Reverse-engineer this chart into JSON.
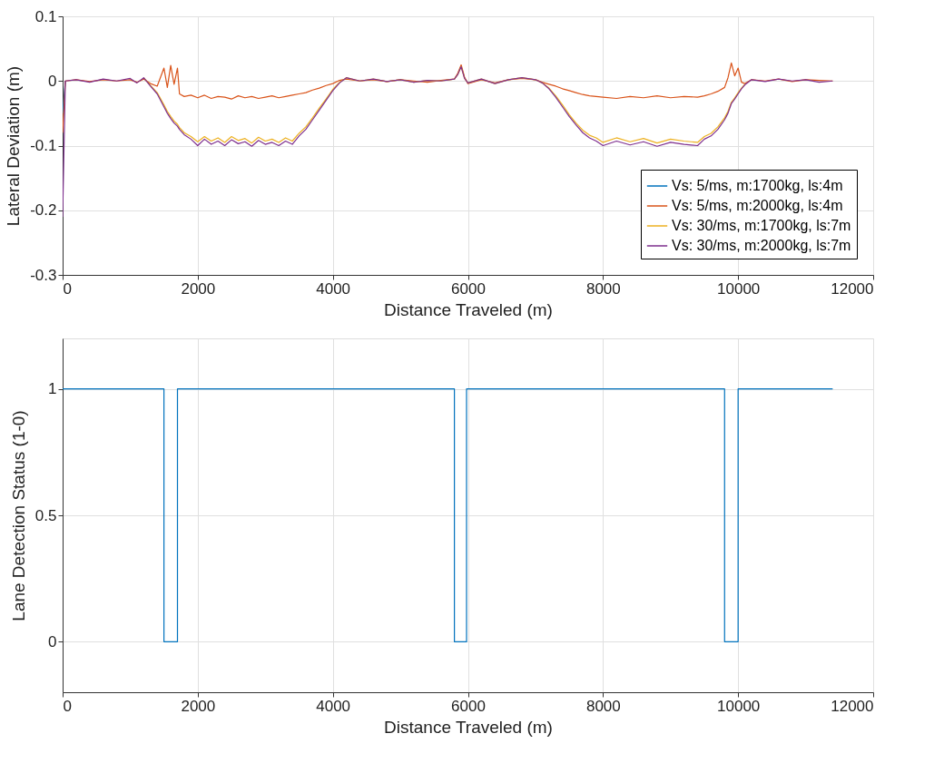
{
  "chart_data": [
    {
      "type": "line",
      "xlabel": "Distance Traveled (m)",
      "ylabel": "Lateral Deviation (m)",
      "xlim": [
        0,
        12000
      ],
      "xticks": [
        0,
        2000,
        4000,
        6000,
        8000,
        10000,
        12000
      ],
      "ylim": [
        -0.3,
        0.1
      ],
      "yticks": [
        -0.3,
        -0.2,
        -0.1,
        0,
        0.1
      ],
      "grid": true,
      "legend": "bottom right",
      "x": [
        0,
        40,
        200,
        400,
        600,
        800,
        1000,
        1100,
        1200,
        1300,
        1400,
        1500,
        1550,
        1600,
        1650,
        1700,
        1730,
        1800,
        1900,
        2000,
        2100,
        2200,
        2300,
        2400,
        2500,
        2600,
        2700,
        2800,
        2900,
        3000,
        3100,
        3200,
        3300,
        3400,
        3500,
        3600,
        3700,
        3800,
        3900,
        4000,
        4100,
        4200,
        4400,
        4600,
        4800,
        5000,
        5200,
        5400,
        5600,
        5800,
        5850,
        5900,
        5950,
        6000,
        6200,
        6400,
        6600,
        6800,
        7000,
        7100,
        7200,
        7300,
        7400,
        7500,
        7600,
        7700,
        7800,
        7900,
        8000,
        8200,
        8400,
        8600,
        8800,
        9000,
        9200,
        9400,
        9500,
        9600,
        9700,
        9800,
        9850,
        9900,
        9950,
        10000,
        10050,
        10100,
        10200,
        10400,
        10600,
        10800,
        11000,
        11200,
        11400
      ],
      "series": [
        {
          "name": "Vs: 5/ms, m:1700kg, ls:4m",
          "color": "#0072bd",
          "values": [
            -0.05,
            0,
            null,
            null,
            null,
            null,
            null,
            null,
            null,
            null,
            null,
            null,
            null,
            null,
            null,
            null,
            null,
            null,
            null,
            null,
            null,
            null,
            null,
            null,
            null,
            null,
            null,
            null,
            null,
            null,
            null,
            null,
            null,
            null,
            null,
            null,
            null,
            null,
            null,
            null,
            null,
            null,
            null,
            null,
            null,
            null,
            null,
            null,
            null,
            null,
            null,
            null,
            null,
            null,
            null,
            null,
            null,
            null,
            null,
            null,
            null,
            null,
            null,
            null,
            null,
            null,
            null,
            null,
            null,
            null,
            null,
            null,
            null,
            null,
            null,
            null,
            null,
            null,
            null,
            null,
            null,
            null,
            null,
            null,
            null,
            null,
            null,
            null,
            null,
            null,
            null,
            null,
            null
          ]
        },
        {
          "name": "Vs: 5/ms, m:2000kg, ls:4m",
          "color": "#d95319",
          "values": [
            -0.08,
            0,
            0.002,
            -0.001,
            0.002,
            0,
            0.002,
            -0.002,
            0.003,
            -0.004,
            -0.008,
            0.02,
            -0.01,
            0.024,
            -0.005,
            0.02,
            -0.02,
            -0.024,
            -0.022,
            -0.026,
            -0.022,
            -0.027,
            -0.024,
            -0.025,
            -0.028,
            -0.023,
            -0.026,
            -0.024,
            -0.027,
            -0.025,
            -0.023,
            -0.026,
            -0.024,
            -0.022,
            -0.02,
            -0.018,
            -0.014,
            -0.011,
            -0.007,
            -0.004,
            0.001,
            0.003,
            0,
            0.002,
            -0.001,
            0.002,
            0,
            -0.002,
            0.001,
            0.003,
            0.012,
            0.025,
            0.006,
            -0.004,
            0.002,
            -0.003,
            0.002,
            0.004,
            0.002,
            -0.002,
            -0.005,
            -0.008,
            -0.012,
            -0.015,
            -0.018,
            -0.021,
            -0.023,
            -0.024,
            -0.025,
            -0.027,
            -0.024,
            -0.026,
            -0.023,
            -0.026,
            -0.024,
            -0.025,
            -0.023,
            -0.02,
            -0.016,
            -0.01,
            0.005,
            0.028,
            0.008,
            0.02,
            -0.002,
            -0.004,
            0.002,
            0,
            0.003,
            -0.001,
            0.002,
            0.001,
            0
          ]
        },
        {
          "name": "Vs: 30/ms, m:1700kg, ls:7m",
          "color": "#edb120",
          "values": [
            null,
            null,
            null,
            null,
            null,
            null,
            null,
            null,
            0.005,
            -0.007,
            -0.018,
            -0.037,
            -0.047,
            -0.055,
            -0.062,
            -0.067,
            -0.072,
            -0.08,
            -0.086,
            -0.094,
            -0.086,
            -0.093,
            -0.088,
            -0.095,
            -0.086,
            -0.092,
            -0.089,
            -0.096,
            -0.087,
            -0.093,
            -0.09,
            -0.095,
            -0.088,
            -0.093,
            -0.081,
            -0.071,
            -0.057,
            -0.042,
            -0.028,
            -0.013,
            -0.002,
            0.005,
            0,
            0.003,
            -0.001,
            0.002,
            -0.002,
            0.001,
            0,
            0.003,
            0.01,
            0.022,
            0.004,
            -0.003,
            0.003,
            -0.004,
            0.002,
            0.005,
            0.002,
            -0.003,
            -0.011,
            -0.023,
            -0.037,
            -0.052,
            -0.065,
            -0.076,
            -0.084,
            -0.088,
            -0.095,
            -0.088,
            -0.094,
            -0.089,
            -0.096,
            -0.09,
            -0.093,
            -0.095,
            -0.086,
            -0.081,
            -0.071,
            -0.057,
            -0.047,
            -0.033,
            -0.026,
            -0.018,
            -0.011,
            -0.005,
            null,
            null,
            null,
            null,
            null,
            null,
            null
          ]
        },
        {
          "name": "Vs: 30/ms, m:2000kg, ls:7m",
          "color": "#7e2f8e",
          "values": [
            -0.21,
            0,
            0.002,
            -0.002,
            0.003,
            0,
            0.004,
            -0.003,
            0.005,
            -0.008,
            -0.02,
            -0.04,
            -0.05,
            -0.058,
            -0.065,
            -0.07,
            -0.075,
            -0.083,
            -0.09,
            -0.1,
            -0.09,
            -0.098,
            -0.093,
            -0.1,
            -0.091,
            -0.097,
            -0.094,
            -0.101,
            -0.092,
            -0.098,
            -0.095,
            -0.1,
            -0.093,
            -0.098,
            -0.085,
            -0.075,
            -0.06,
            -0.045,
            -0.03,
            -0.015,
            -0.003,
            0.005,
            0,
            0.003,
            -0.001,
            0.002,
            -0.002,
            0.001,
            0,
            0.003,
            0.01,
            0.022,
            0.004,
            -0.003,
            0.003,
            -0.004,
            0.002,
            0.005,
            0.002,
            -0.003,
            -0.012,
            -0.025,
            -0.04,
            -0.055,
            -0.068,
            -0.08,
            -0.088,
            -0.093,
            -0.1,
            -0.093,
            -0.099,
            -0.094,
            -0.101,
            -0.095,
            -0.098,
            -0.1,
            -0.09,
            -0.085,
            -0.075,
            -0.06,
            -0.05,
            -0.035,
            -0.028,
            -0.02,
            -0.012,
            -0.006,
            0.002,
            -0.001,
            0.003,
            0,
            0.002,
            -0.002,
            0
          ]
        }
      ]
    },
    {
      "type": "step",
      "xlabel": "Distance Traveled (m)",
      "ylabel": "Lane Detection Status (1-0)",
      "xlim": [
        0,
        12000
      ],
      "xticks": [
        0,
        2000,
        4000,
        6000,
        8000,
        10000,
        12000
      ],
      "ylim": [
        -0.2,
        1.2
      ],
      "yticks": [
        0,
        0.5,
        1
      ],
      "grid": true,
      "x": [
        0,
        1500,
        1700,
        5800,
        5980,
        9800,
        10000,
        11400
      ],
      "series": [
        {
          "color": "#0072bd",
          "values": [
            1,
            0,
            1,
            0,
            1,
            0,
            1,
            1
          ]
        }
      ]
    }
  ]
}
